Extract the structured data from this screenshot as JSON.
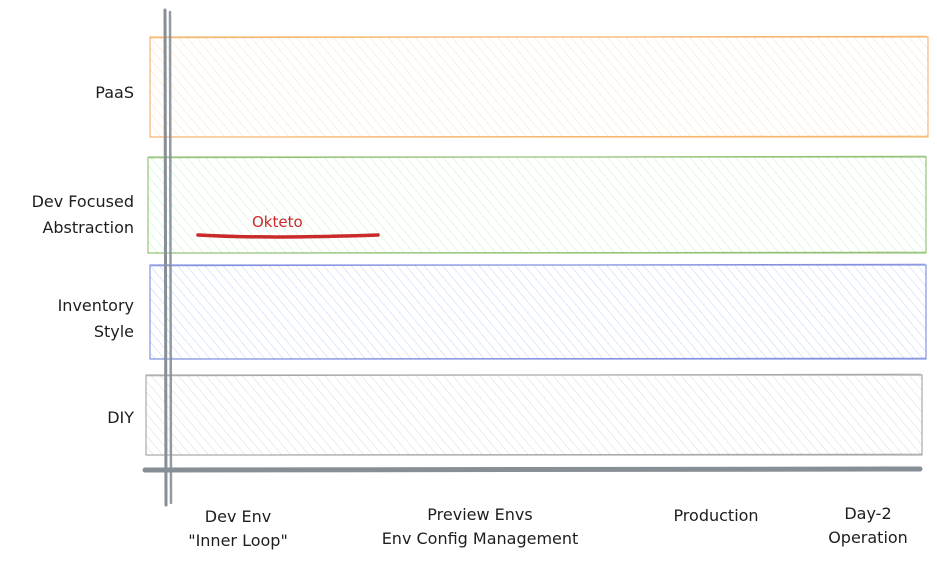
{
  "lanes": [
    {
      "label_lines": [
        "PaaS"
      ],
      "color": "#f59f42",
      "fill": "#ffd8a8"
    },
    {
      "label_lines": [
        "Dev Focused",
        "Abstraction"
      ],
      "color": "#74b04d",
      "fill": "#b2f2bb"
    },
    {
      "label_lines": [
        "Inventory",
        "Style"
      ],
      "color": "#5c6fd6",
      "fill": "#a5b4fc"
    },
    {
      "label_lines": [
        "DIY"
      ],
      "color": "#909090",
      "fill": "#ced4da"
    }
  ],
  "stages": [
    {
      "lines": [
        "Dev Env",
        "\"Inner Loop\""
      ]
    },
    {
      "lines": [
        "Preview Envs",
        "Env Config Management"
      ]
    },
    {
      "lines": [
        "Production"
      ]
    },
    {
      "lines": [
        "Day-2",
        "Operation"
      ]
    }
  ],
  "tools": [
    {
      "label": "Okteto",
      "color": "#c92a2a",
      "lane": "Dev Focused",
      "stage_span": "Dev Env"
    }
  ],
  "axis_color": "#868e96"
}
